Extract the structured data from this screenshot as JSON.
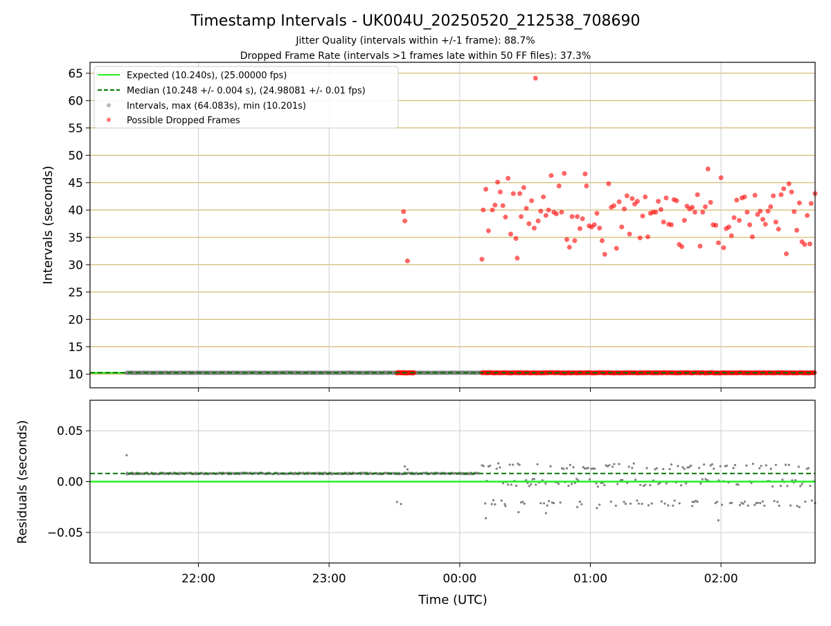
{
  "chart_data": [
    {
      "type": "scatter",
      "title": "Timestamp Intervals - UK004U_20250520_212538_708690",
      "subtitle_lines": [
        "Jitter Quality (intervals within +/-1 frame): 88.7%",
        "Dropped Frame Rate (intervals >1 frames late within 50 FF files): 37.3%"
      ],
      "ylabel": "Intervals (seconds)",
      "ylim": [
        7.5,
        67
      ],
      "xlim_hours": [
        21.17,
        26.72
      ],
      "yticks": [
        10,
        15,
        20,
        25,
        30,
        35,
        40,
        45,
        50,
        55,
        60,
        65
      ],
      "ytick_labels": [
        "10",
        "15",
        "20",
        "25",
        "30",
        "35",
        "40",
        "45",
        "50",
        "55",
        "60",
        "65"
      ],
      "grid": "on",
      "legend_position": "top-left",
      "legend": [
        {
          "label": "Expected (10.240s), (25.00000 fps)",
          "color": "#22ee22",
          "style": "solid-line"
        },
        {
          "label": "Median (10.248 +/- 0.004 s), (24.98081 +/- 0.01 fps)",
          "color": "#007700",
          "style": "dashed-line"
        },
        {
          "label": "Intervals, max (64.083s), min (10.201s)",
          "color": "#808080",
          "style": "marker"
        },
        {
          "label": "Possible Dropped Frames",
          "color": "#ff0000",
          "style": "marker"
        }
      ],
      "expected_interval": 10.24,
      "median_interval": 10.248,
      "dropped_frames": [
        [
          23.57,
          39.7
        ],
        [
          23.58,
          38.0
        ],
        [
          23.6,
          30.7
        ],
        [
          24.58,
          64.1
        ],
        [
          24.44,
          31.2
        ],
        [
          24.8,
          46.7
        ],
        [
          24.7,
          46.3
        ],
        [
          24.96,
          46.6
        ],
        [
          24.97,
          44.4
        ],
        [
          25.14,
          44.8
        ],
        [
          25.9,
          47.5
        ],
        [
          26.0,
          45.9
        ],
        [
          26.52,
          44.8
        ],
        [
          26.72,
          43.0
        ],
        [
          26.69,
          41.2
        ],
        [
          26.68,
          33.8
        ],
        [
          24.17,
          31.0
        ],
        [
          24.18,
          40.0
        ],
        [
          24.2,
          43.8
        ],
        [
          24.22,
          36.2
        ],
        [
          24.25,
          40.0
        ],
        [
          24.27,
          40.9
        ],
        [
          24.29,
          45.1
        ],
        [
          24.31,
          43.3
        ],
        [
          24.33,
          40.8
        ],
        [
          24.35,
          38.7
        ],
        [
          24.37,
          45.8
        ],
        [
          24.39,
          35.6
        ],
        [
          24.41,
          43.0
        ],
        [
          24.43,
          34.8
        ],
        [
          24.46,
          43.0
        ],
        [
          24.47,
          38.8
        ],
        [
          24.49,
          44.1
        ],
        [
          24.51,
          40.3
        ],
        [
          24.53,
          37.5
        ],
        [
          24.55,
          41.7
        ],
        [
          24.57,
          36.7
        ],
        [
          24.6,
          38.0
        ],
        [
          24.62,
          39.8
        ],
        [
          24.64,
          42.4
        ],
        [
          24.66,
          39.0
        ],
        [
          24.68,
          40.0
        ],
        [
          24.72,
          39.6
        ],
        [
          24.74,
          39.3
        ],
        [
          24.76,
          44.4
        ],
        [
          24.78,
          39.6
        ],
        [
          24.82,
          34.6
        ],
        [
          24.84,
          33.2
        ],
        [
          24.86,
          38.8
        ],
        [
          24.88,
          34.4
        ],
        [
          24.9,
          38.8
        ],
        [
          24.92,
          36.6
        ],
        [
          24.94,
          38.4
        ],
        [
          24.99,
          37.1
        ],
        [
          25.01,
          36.9
        ],
        [
          25.03,
          37.3
        ],
        [
          25.05,
          39.4
        ],
        [
          25.07,
          36.7
        ],
        [
          25.09,
          34.4
        ],
        [
          25.11,
          31.9
        ],
        [
          25.16,
          40.5
        ],
        [
          25.18,
          40.8
        ],
        [
          25.2,
          33.0
        ],
        [
          25.22,
          41.5
        ],
        [
          25.24,
          36.9
        ],
        [
          25.26,
          40.2
        ],
        [
          25.28,
          42.6
        ],
        [
          25.3,
          35.6
        ],
        [
          25.32,
          42.1
        ],
        [
          25.34,
          41.1
        ],
        [
          25.36,
          41.6
        ],
        [
          25.38,
          34.9
        ],
        [
          25.4,
          38.9
        ],
        [
          25.42,
          42.4
        ],
        [
          25.44,
          35.1
        ],
        [
          25.46,
          39.4
        ],
        [
          25.48,
          39.6
        ],
        [
          25.5,
          39.6
        ],
        [
          25.52,
          41.6
        ],
        [
          25.54,
          40.1
        ],
        [
          25.56,
          37.8
        ],
        [
          25.58,
          42.2
        ],
        [
          25.6,
          37.4
        ],
        [
          25.62,
          37.3
        ],
        [
          25.64,
          41.9
        ],
        [
          25.66,
          41.7
        ],
        [
          25.68,
          33.7
        ],
        [
          25.7,
          33.3
        ],
        [
          25.72,
          38.1
        ],
        [
          25.74,
          40.7
        ],
        [
          25.76,
          40.2
        ],
        [
          25.78,
          40.5
        ],
        [
          25.8,
          39.6
        ],
        [
          25.82,
          42.8
        ],
        [
          25.84,
          33.4
        ],
        [
          25.86,
          39.6
        ],
        [
          25.88,
          40.6
        ],
        [
          25.92,
          41.4
        ],
        [
          25.94,
          37.3
        ],
        [
          25.96,
          37.2
        ],
        [
          25.98,
          34.0
        ],
        [
          26.02,
          33.1
        ],
        [
          26.04,
          36.6
        ],
        [
          26.06,
          36.9
        ],
        [
          26.08,
          35.3
        ],
        [
          26.1,
          38.6
        ],
        [
          26.12,
          41.8
        ],
        [
          26.14,
          38.1
        ],
        [
          26.16,
          42.2
        ],
        [
          26.18,
          42.4
        ],
        [
          26.2,
          39.6
        ],
        [
          26.22,
          37.3
        ],
        [
          26.24,
          35.1
        ],
        [
          26.26,
          42.7
        ],
        [
          26.28,
          39.2
        ],
        [
          26.3,
          39.8
        ],
        [
          26.32,
          38.3
        ],
        [
          26.34,
          37.4
        ],
        [
          26.36,
          39.8
        ],
        [
          26.38,
          40.6
        ],
        [
          26.4,
          42.6
        ],
        [
          26.42,
          37.8
        ],
        [
          26.44,
          36.5
        ],
        [
          26.46,
          42.8
        ],
        [
          26.48,
          43.9
        ],
        [
          26.5,
          32.0
        ],
        [
          26.54,
          43.3
        ],
        [
          26.56,
          39.7
        ],
        [
          26.58,
          36.3
        ],
        [
          26.6,
          41.3
        ],
        [
          26.62,
          34.2
        ],
        [
          26.64,
          33.7
        ],
        [
          26.66,
          39.0
        ]
      ]
    },
    {
      "type": "scatter",
      "ylabel": "Residuals (seconds)",
      "xlabel": "Time (UTC)",
      "ylim": [
        -0.08,
        0.08
      ],
      "xlim_hours": [
        21.17,
        26.72
      ],
      "yticks": [
        -0.05,
        0.0,
        0.05
      ],
      "ytick_labels": [
        "−0.05",
        "0.00",
        "0.05"
      ],
      "xticks_hours": [
        22,
        23,
        24,
        25,
        26
      ],
      "xtick_labels": [
        "22:00",
        "23:00",
        "00:00",
        "01:00",
        "02:00"
      ],
      "grid": "on",
      "expected_residual": 0.0,
      "median_residual": 0.008,
      "outlier_residuals": [
        [
          21.45,
          0.026
        ],
        [
          23.52,
          -0.02
        ],
        [
          23.55,
          -0.022
        ],
        [
          23.58,
          0.015
        ],
        [
          23.6,
          0.012
        ],
        [
          24.2,
          -0.036
        ],
        [
          24.35,
          -0.024
        ],
        [
          24.45,
          -0.03
        ],
        [
          24.66,
          -0.031
        ],
        [
          24.9,
          -0.025
        ],
        [
          25.05,
          -0.026
        ],
        [
          25.78,
          -0.024
        ],
        [
          25.98,
          -0.038
        ],
        [
          26.3,
          -0.021
        ],
        [
          26.6,
          -0.025
        ]
      ]
    }
  ],
  "colors": {
    "expected": "#22ee22",
    "median": "#007700",
    "interval_points": "#808080",
    "dropped": "#ff0000",
    "grid_top": "#c8a84a",
    "grid_gray": "#cccccc"
  }
}
